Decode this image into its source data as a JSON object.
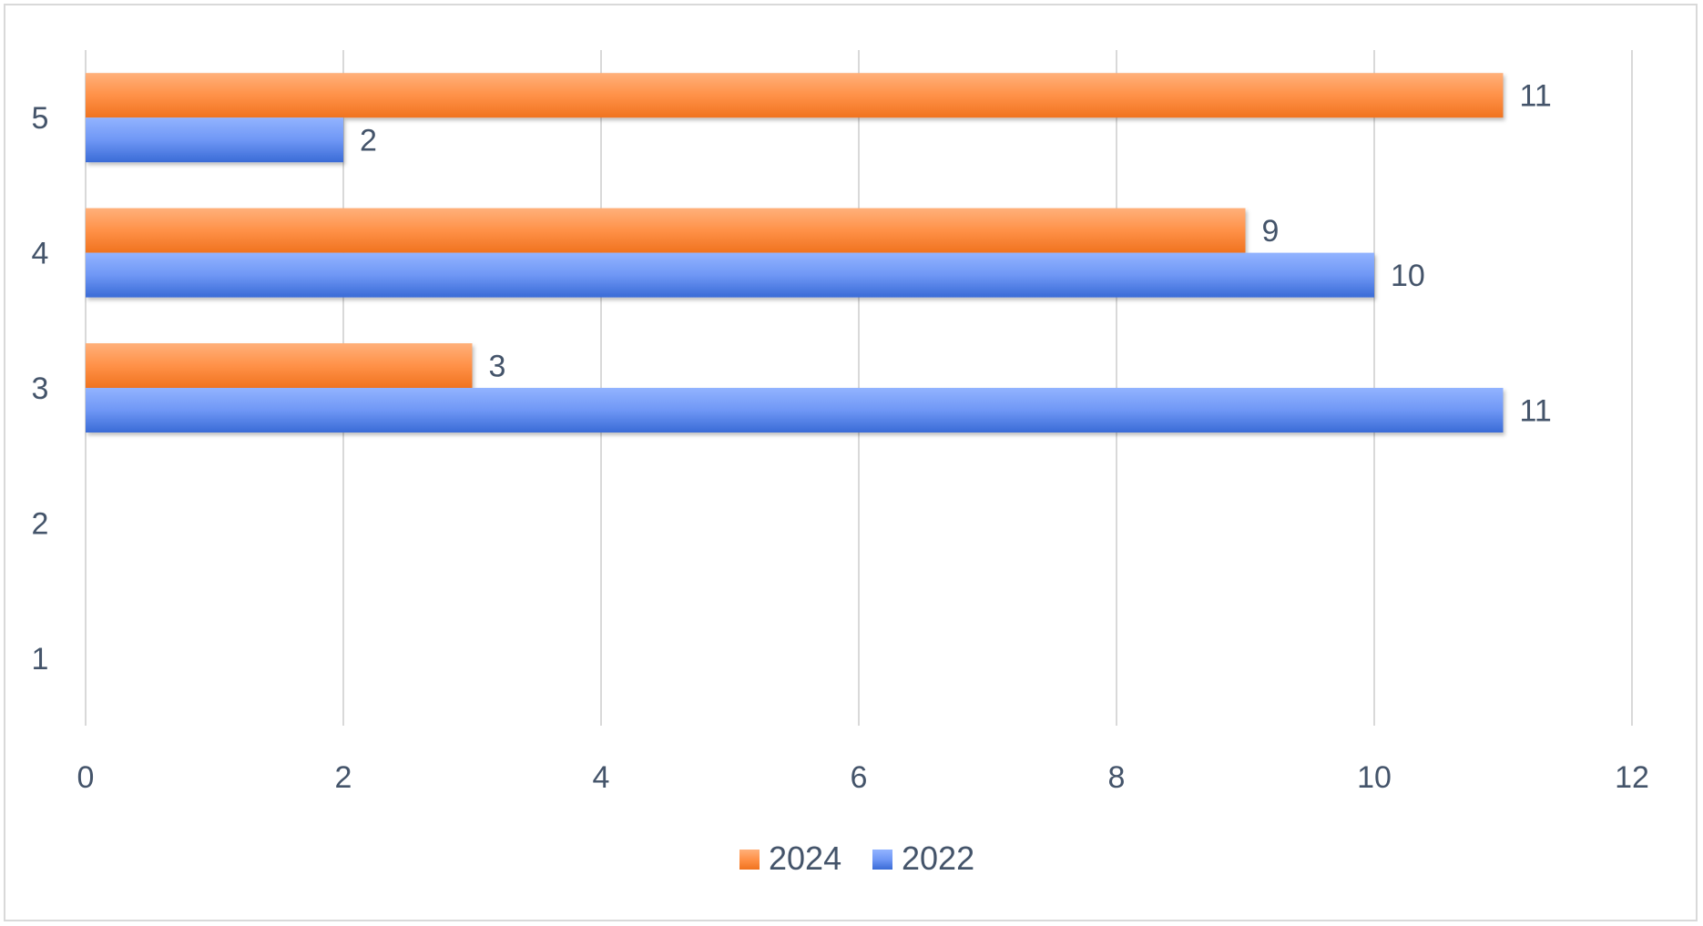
{
  "chart_data": {
    "type": "bar",
    "orientation": "horizontal",
    "categories": [
      "1",
      "2",
      "3",
      "4",
      "5"
    ],
    "series": [
      {
        "name": "2022",
        "values": [
          null,
          null,
          11,
          10,
          2
        ],
        "color": "#4472c4"
      },
      {
        "name": "2024",
        "values": [
          null,
          null,
          3,
          9,
          11
        ],
        "color": "#ed7d31"
      }
    ],
    "x_ticks": [
      "0",
      "2",
      "4",
      "6",
      "8",
      "10",
      "12"
    ],
    "xlim": [
      0,
      12
    ],
    "grid": "vertical",
    "legend": {
      "placement": "bottom",
      "order": [
        "2024",
        "2022"
      ]
    },
    "title": "",
    "xlabel": "",
    "ylabel": ""
  }
}
